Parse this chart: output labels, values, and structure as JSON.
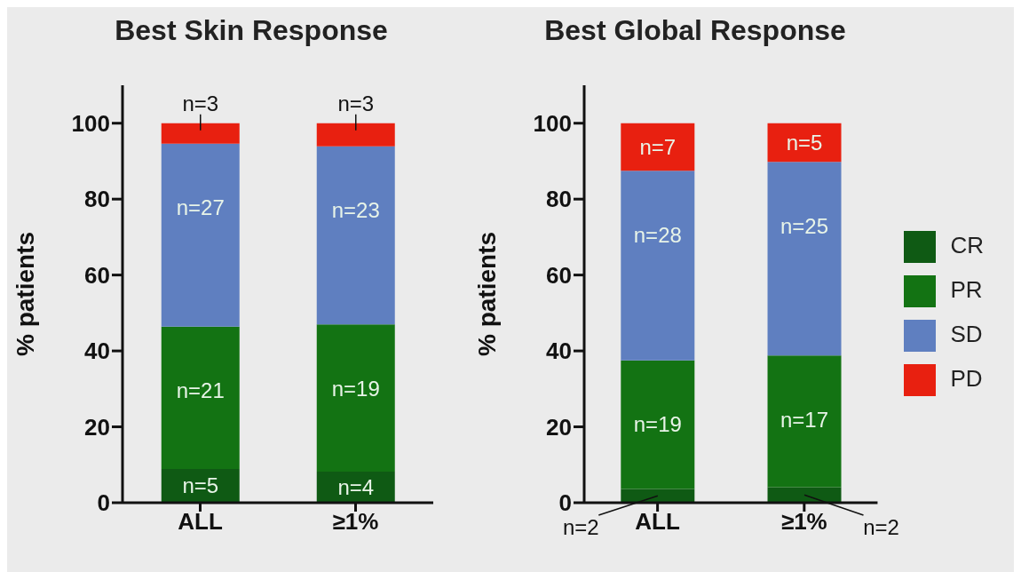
{
  "chart_data": [
    {
      "type": "bar",
      "title": "Best Skin Response",
      "ylabel": "% patients",
      "categories": [
        "ALL",
        "≥1%"
      ],
      "stacked": true,
      "series": [
        {
          "color": "#0f5a14",
          "values": [
            8.9,
            8.2
          ]
        },
        {
          "color": "#137313",
          "values": [
            37.5,
            38.8
          ]
        },
        {
          "color": "#5f7fc0",
          "values": [
            48.2,
            46.9
          ]
        },
        {
          "color": "#e82010",
          "values": [
            5.4,
            6.1
          ]
        }
      ],
      "annotations": [
        {
          "text": "n=5",
          "x": "ALL",
          "y": 8.9
        },
        {
          "text": "n=4",
          "x": "≥1%",
          "y": 8.2
        },
        {
          "text": "n=21",
          "x": "ALL",
          "y": 46.4
        },
        {
          "text": "n=19",
          "x": "≥1%",
          "y": 47.0
        },
        {
          "text": "n=27",
          "x": "ALL",
          "y": 94.6
        },
        {
          "text": "n=23",
          "x": "≥1%",
          "y": 93.9
        },
        {
          "text": "n=3",
          "x": "ALL",
          "y": 100
        },
        {
          "text": "n=3",
          "x": "≥1%",
          "y": 100
        }
      ],
      "ylim": [
        0,
        110
      ],
      "yticks": [
        0,
        20,
        40,
        60,
        80,
        100
      ],
      "grid": false,
      "legend": false
    },
    {
      "type": "bar",
      "title": "Best Global Response",
      "ylabel": "% patients",
      "categories": [
        "ALL",
        "≥1%"
      ],
      "stacked": true,
      "series": [
        {
          "name": "CR",
          "color": "#0f5a14",
          "values": [
            3.6,
            4.1
          ]
        },
        {
          "name": "PR",
          "color": "#137313",
          "values": [
            33.9,
            34.7
          ]
        },
        {
          "name": "SD",
          "color": "#5f7fc0",
          "values": [
            50.0,
            51.0
          ]
        },
        {
          "name": "PD",
          "color": "#e82010",
          "values": [
            12.5,
            10.2
          ]
        }
      ],
      "annotations": [
        {
          "text": "n=2",
          "x": "ALL",
          "y": 3.6
        },
        {
          "text": "n=2",
          "x": "≥1%",
          "y": 4.1
        },
        {
          "text": "n=19",
          "x": "ALL",
          "y": 37.5
        },
        {
          "text": "n=17",
          "x": "≥1%",
          "y": 38.8
        },
        {
          "text": "n=28",
          "x": "ALL",
          "y": 87.5
        },
        {
          "text": "n=25",
          "x": "≥1%",
          "y": 89.8
        },
        {
          "text": "n=7",
          "x": "ALL",
          "y": 100
        },
        {
          "text": "n=5",
          "x": "≥1%",
          "y": 100
        }
      ],
      "ylim": [
        0,
        110
      ],
      "yticks": [
        0,
        20,
        40,
        60,
        80,
        100
      ],
      "grid": false,
      "legend": "right"
    }
  ]
}
